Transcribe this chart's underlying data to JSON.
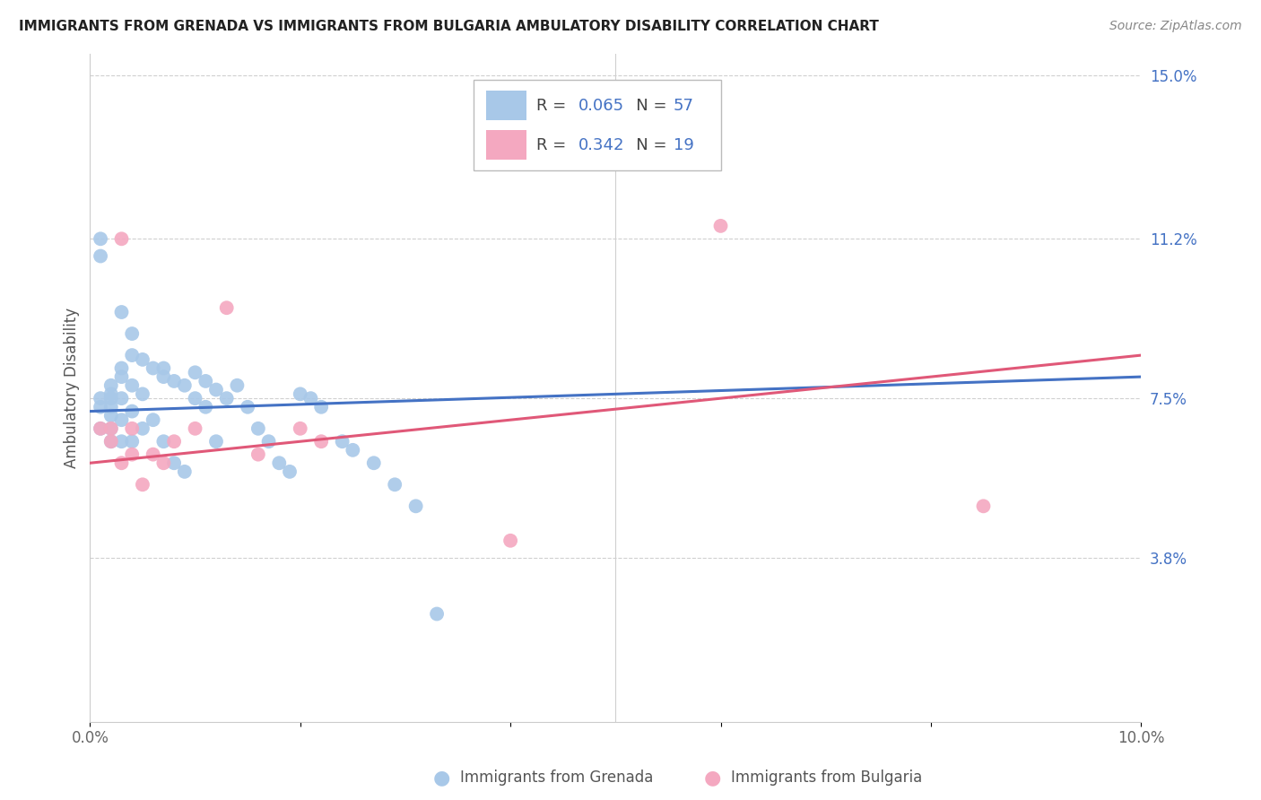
{
  "title": "IMMIGRANTS FROM GRENADA VS IMMIGRANTS FROM BULGARIA AMBULATORY DISABILITY CORRELATION CHART",
  "source": "Source: ZipAtlas.com",
  "ylabel": "Ambulatory Disability",
  "xlim": [
    0.0,
    0.1
  ],
  "ylim": [
    0.0,
    0.155
  ],
  "xtick_positions": [
    0.0,
    0.02,
    0.04,
    0.06,
    0.08,
    0.1
  ],
  "xtick_labels": [
    "0.0%",
    "",
    "",
    "",
    "",
    "10.0%"
  ],
  "ytick_positions": [
    0.038,
    0.075,
    0.112,
    0.15
  ],
  "ytick_labels": [
    "3.8%",
    "7.5%",
    "11.2%",
    "15.0%"
  ],
  "grenada_R": 0.065,
  "grenada_N": 57,
  "bulgaria_R": 0.342,
  "bulgaria_N": 19,
  "grenada_color": "#a8c8e8",
  "bulgaria_color": "#f4a8c0",
  "grenada_line_color": "#4472c4",
  "bulgaria_line_color": "#e05878",
  "background_color": "#ffffff",
  "grid_color": "#d0d0d0",
  "grenada_x": [
    0.001,
    0.001,
    0.001,
    0.001,
    0.001,
    0.002,
    0.002,
    0.002,
    0.002,
    0.002,
    0.002,
    0.002,
    0.003,
    0.003,
    0.003,
    0.003,
    0.003,
    0.003,
    0.004,
    0.004,
    0.004,
    0.004,
    0.004,
    0.005,
    0.005,
    0.005,
    0.006,
    0.006,
    0.007,
    0.007,
    0.007,
    0.008,
    0.008,
    0.009,
    0.009,
    0.01,
    0.01,
    0.011,
    0.011,
    0.012,
    0.012,
    0.013,
    0.014,
    0.015,
    0.016,
    0.017,
    0.018,
    0.019,
    0.02,
    0.021,
    0.022,
    0.024,
    0.025,
    0.027,
    0.029,
    0.031,
    0.033
  ],
  "grenada_y": [
    0.112,
    0.108,
    0.075,
    0.073,
    0.068,
    0.078,
    0.076,
    0.075,
    0.073,
    0.071,
    0.068,
    0.065,
    0.095,
    0.082,
    0.08,
    0.075,
    0.07,
    0.065,
    0.09,
    0.085,
    0.078,
    0.072,
    0.065,
    0.084,
    0.076,
    0.068,
    0.082,
    0.07,
    0.082,
    0.08,
    0.065,
    0.079,
    0.06,
    0.078,
    0.058,
    0.081,
    0.075,
    0.079,
    0.073,
    0.077,
    0.065,
    0.075,
    0.078,
    0.073,
    0.068,
    0.065,
    0.06,
    0.058,
    0.076,
    0.075,
    0.073,
    0.065,
    0.063,
    0.06,
    0.055,
    0.05,
    0.025
  ],
  "bulgaria_x": [
    0.001,
    0.002,
    0.002,
    0.003,
    0.003,
    0.004,
    0.004,
    0.005,
    0.006,
    0.007,
    0.008,
    0.01,
    0.013,
    0.016,
    0.02,
    0.022,
    0.04,
    0.06,
    0.085
  ],
  "bulgaria_y": [
    0.068,
    0.065,
    0.068,
    0.112,
    0.06,
    0.062,
    0.068,
    0.055,
    0.062,
    0.06,
    0.065,
    0.068,
    0.096,
    0.062,
    0.068,
    0.065,
    0.042,
    0.115,
    0.05
  ]
}
